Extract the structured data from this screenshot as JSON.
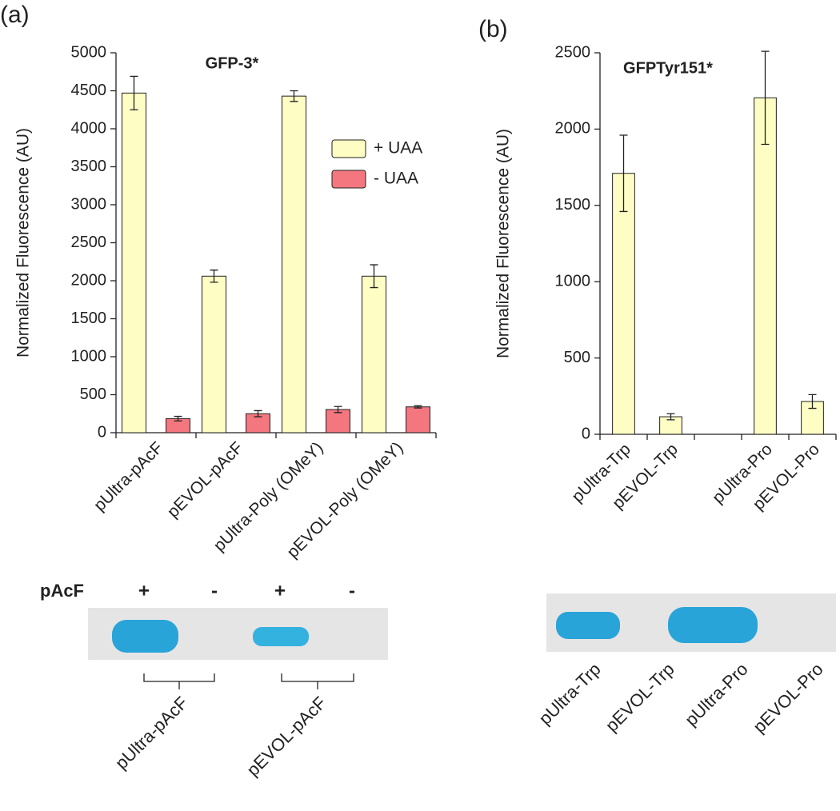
{
  "chart_data": [
    {
      "type": "bar",
      "panel_label": "(a)",
      "title": "GFP-3*",
      "y_label": "Normalized Fluorescence (AU)",
      "categories": [
        "pUltra-pAcF",
        "pEVOL-pAcF",
        "pUltra-Poly (OMeY)",
        "pEVOL-Poly (OMeY)"
      ],
      "series": [
        {
          "name": "+ UAA",
          "color": "#fdfdc4",
          "values": [
            4470,
            2060,
            4430,
            2060
          ],
          "errors": [
            220,
            80,
            70,
            150
          ]
        },
        {
          "name": "- UAA",
          "color": "#f4777f",
          "values": [
            185,
            250,
            305,
            340
          ],
          "errors": [
            30,
            40,
            40,
            15
          ]
        }
      ],
      "ylim": [
        0,
        5000
      ],
      "yticks": [
        0,
        500,
        1000,
        1500,
        2000,
        2500,
        3000,
        3500,
        4000,
        4500,
        5000
      ],
      "legend": "upper right",
      "grid": false
    },
    {
      "type": "bar",
      "panel_label": "(b)",
      "title": "GFPTyr151*",
      "y_label": "Normalized Fluorescence (AU)",
      "categories": [
        "pUltra-Trp",
        "pEVOL-Trp",
        null,
        "pUltra-Pro",
        "pEVOL-Pro"
      ],
      "series": [
        {
          "name": "+ UAA",
          "color": "#fdfdc4",
          "values": [
            1710,
            115,
            null,
            2205,
            215
          ],
          "errors": [
            250,
            20,
            null,
            305,
            45
          ]
        }
      ],
      "ylim": [
        0,
        2500
      ],
      "yticks": [
        0,
        500,
        1000,
        1500,
        2000,
        2500
      ],
      "legend": null,
      "grid": false
    }
  ],
  "gels": [
    {
      "row_label": "pAcF",
      "lanes": [
        "+",
        "-",
        "+",
        "-"
      ],
      "groups": [
        "pUltra-pAcF",
        "pEVOL-pAcF"
      ]
    },
    {
      "lanes": [
        "pUltra-Trp",
        "pEVOL-Trp",
        "pUltra-Pro",
        "pEVOL-Pro"
      ]
    }
  ]
}
